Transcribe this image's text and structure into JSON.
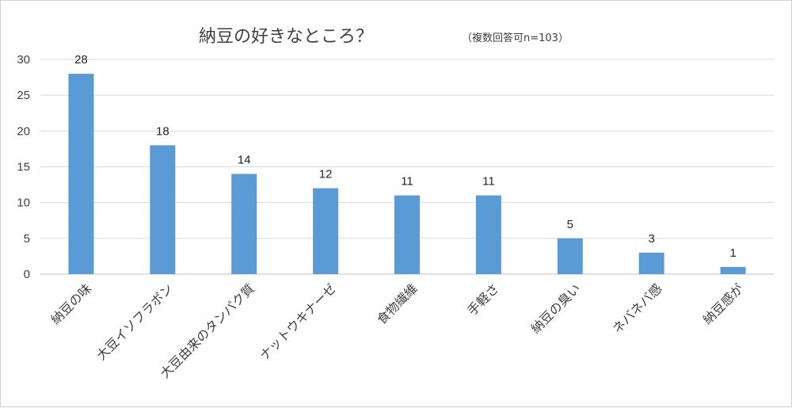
{
  "chart_data": {
    "type": "bar",
    "title": "納豆の好きなところ？",
    "subtitle": "（複数回答可n=103）",
    "categories": [
      "納豆の味",
      "大豆イソフラボン",
      "大豆由来のタンパク質",
      "ナットウキナーゼ",
      "食物繊維",
      "手軽さ",
      "納豆の臭い",
      "ネバネバ感",
      "納豆感が"
    ],
    "values": [
      28,
      18,
      14,
      12,
      11,
      11,
      5,
      3,
      1
    ],
    "yticks": [
      "0",
      "5",
      "10",
      "15",
      "20",
      "25",
      "30"
    ],
    "ylim": [
      0,
      30
    ],
    "xlabel": "",
    "ylabel": "",
    "grid": true,
    "bar_color": "#5b9bd5",
    "grid_color": "#d9d9d9",
    "axis_color": "#bfbfbf"
  }
}
